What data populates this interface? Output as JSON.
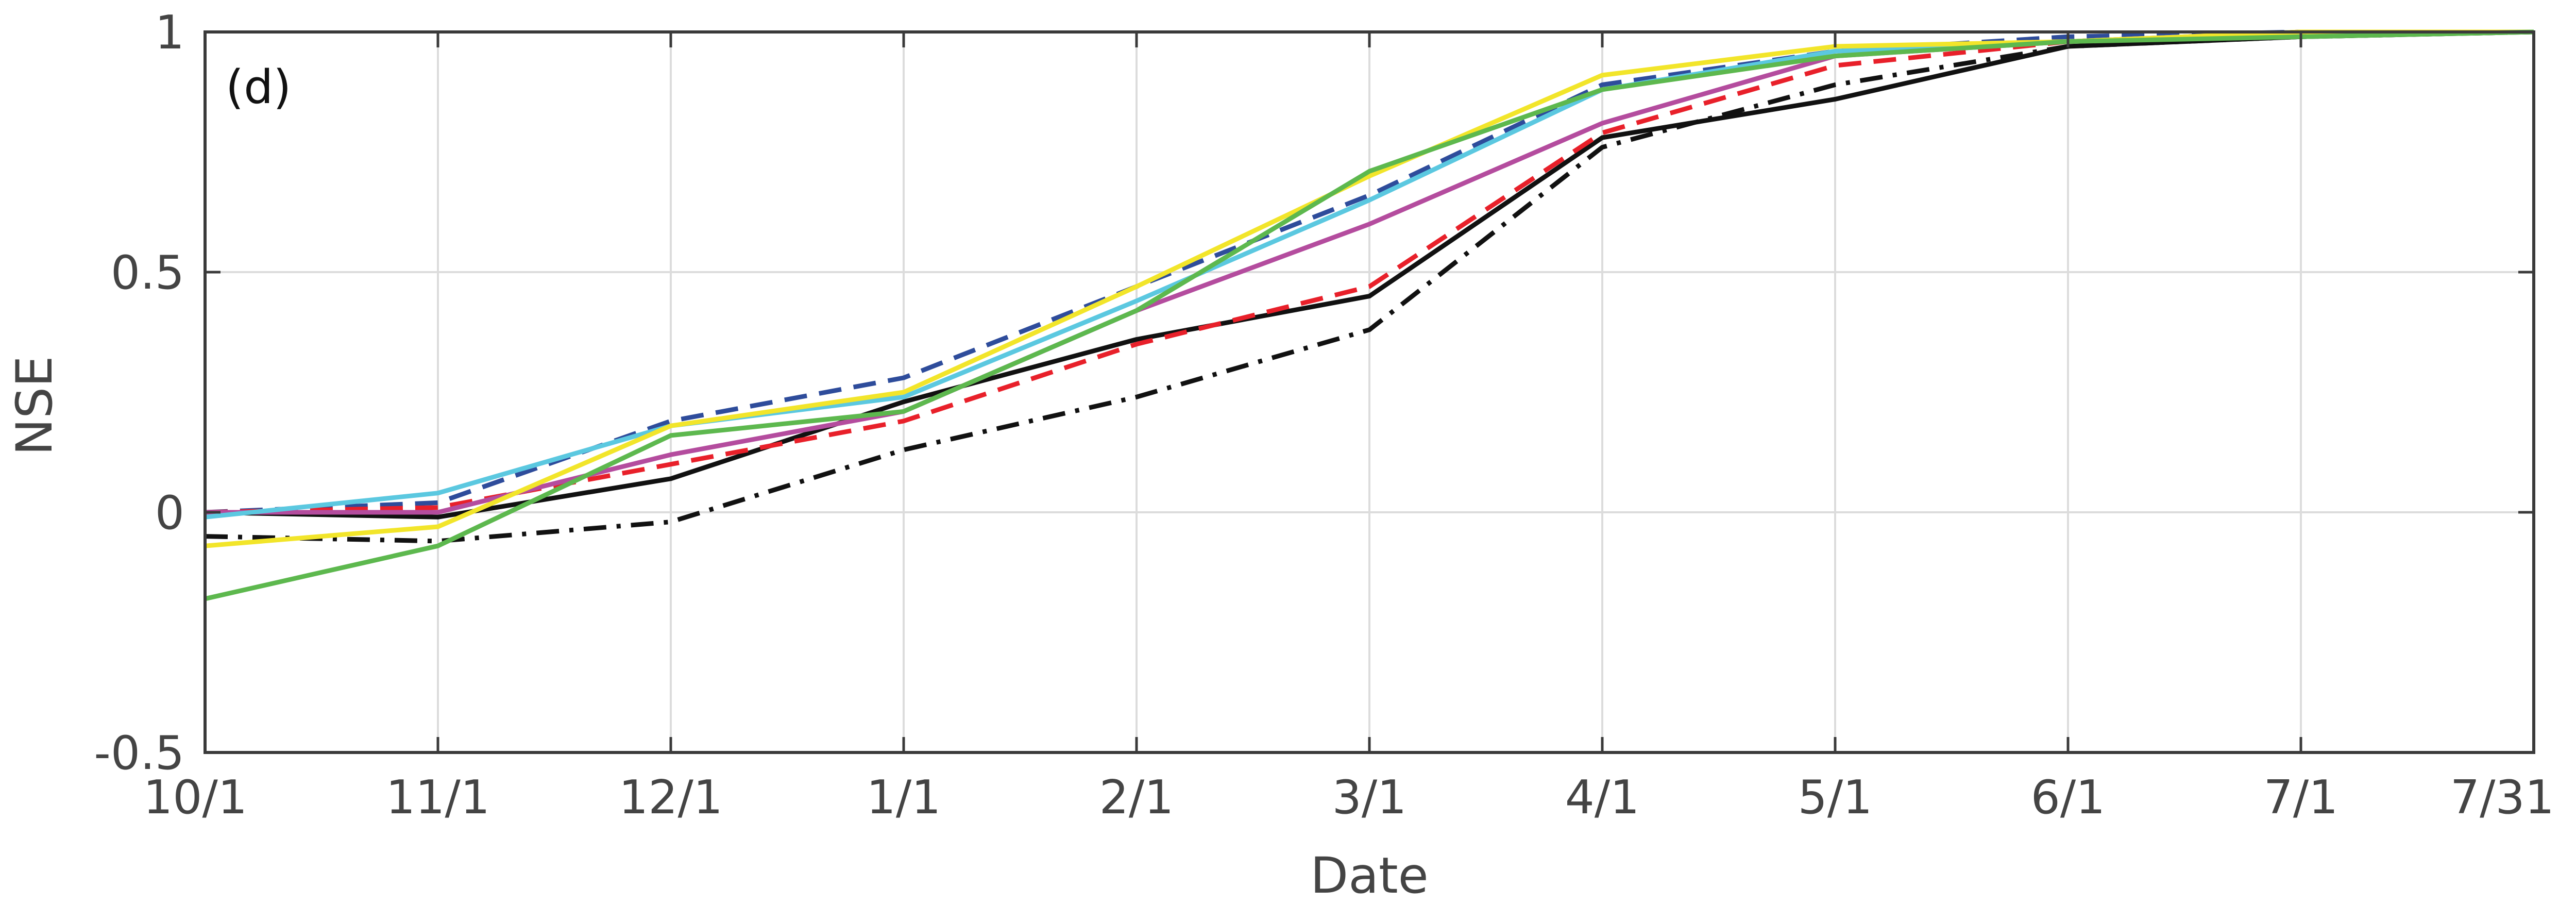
{
  "chart_data": {
    "type": "line",
    "panel_label": "(d)",
    "title": "",
    "xlabel": "Date",
    "ylabel": "NSE",
    "x_ticks": [
      "10/1",
      "11/1",
      "12/1",
      "1/1",
      "2/1",
      "3/1",
      "4/1",
      "5/1",
      "6/1",
      "7/1",
      "7/31"
    ],
    "y_ticks": [
      "1",
      "0.5",
      "0",
      "-0.5"
    ],
    "ylim": [
      -0.5,
      1
    ],
    "grid": true,
    "legend": "none",
    "series": [
      {
        "color": "#111111",
        "dash": "solid",
        "values": [
          0,
          -0.01,
          0.07,
          0.23,
          0.36,
          0.45,
          0.78,
          0.86,
          0.97,
          0.99,
          1.0
        ]
      },
      {
        "color": "#111111",
        "dash": "dashdot",
        "values": [
          -0.05,
          -0.06,
          -0.02,
          0.13,
          0.24,
          0.38,
          0.76,
          0.89,
          0.97,
          0.99,
          1.0
        ]
      },
      {
        "color": "#2E4C9B",
        "dash": "dashed",
        "values": [
          0,
          0.02,
          0.19,
          0.28,
          0.47,
          0.66,
          0.89,
          0.96,
          0.99,
          1.0,
          1.0
        ]
      },
      {
        "color": "#E8202A",
        "dash": "dashed",
        "values": [
          0,
          0.01,
          0.1,
          0.19,
          0.35,
          0.47,
          0.79,
          0.93,
          0.98,
          1.0,
          1.0
        ]
      },
      {
        "color": "#B44C9E",
        "dash": "solid",
        "values": [
          0,
          0,
          0.12,
          0.21,
          0.42,
          0.6,
          0.81,
          0.95,
          0.98,
          1.0,
          1.0
        ]
      },
      {
        "color": "#5BC8E0",
        "dash": "solid",
        "values": [
          -0.01,
          0.04,
          0.18,
          0.24,
          0.44,
          0.65,
          0.88,
          0.96,
          0.98,
          1.0,
          1.0
        ]
      },
      {
        "color": "#F2E52A",
        "dash": "solid",
        "values": [
          -0.07,
          -0.03,
          0.18,
          0.25,
          0.47,
          0.7,
          0.91,
          0.97,
          0.98,
          1.0,
          1.0
        ]
      },
      {
        "color": "#5DB84E",
        "dash": "solid",
        "values": [
          -0.18,
          -0.07,
          0.16,
          0.21,
          0.42,
          0.71,
          0.88,
          0.95,
          0.98,
          0.99,
          1.0
        ]
      }
    ]
  }
}
